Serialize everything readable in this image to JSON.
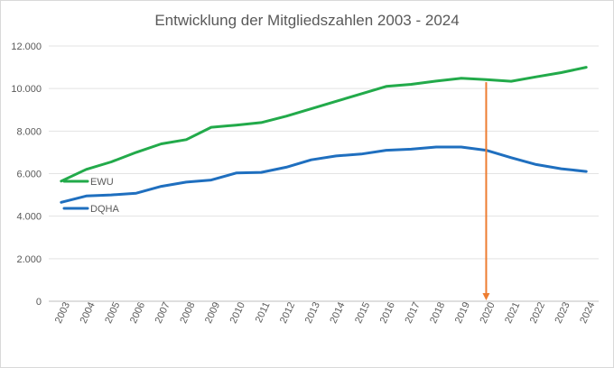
{
  "chart_data": {
    "type": "line",
    "title": "Entwicklung der Mitgliedszahlen 2003 - 2024",
    "xlabel": "",
    "ylabel": "",
    "x": [
      "2003",
      "2004",
      "2005",
      "2006",
      "2007",
      "2008",
      "2009",
      "2010",
      "2011",
      "2012",
      "2013",
      "2014",
      "2015",
      "2016",
      "2017",
      "2018",
      "2019",
      "2020",
      "2021",
      "2022",
      "2023",
      "2024"
    ],
    "series": [
      {
        "name": "EWU",
        "color": "#22aa4a",
        "values": [
          5650,
          6200,
          6550,
          7000,
          7400,
          7600,
          8180,
          8280,
          8400,
          8700,
          9050,
          9400,
          9750,
          10100,
          10200,
          10350,
          10480,
          10420,
          10340,
          10550,
          10750,
          11000
        ]
      },
      {
        "name": "DQHA",
        "color": "#1f6fbf",
        "values": [
          4650,
          4950,
          5000,
          5080,
          5400,
          5600,
          5700,
          6030,
          6060,
          6300,
          6650,
          6830,
          6920,
          7100,
          7150,
          7250,
          7250,
          7100,
          6750,
          6430,
          6230,
          6100
        ]
      }
    ],
    "yticks": [
      "0",
      "2.000",
      "4.000",
      "6.000",
      "8.000",
      "10.000",
      "12.000"
    ],
    "ylim": [
      0,
      12000
    ],
    "grid": true,
    "legend": "left",
    "annotation": {
      "type": "arrow",
      "x": "2020",
      "from": 10300,
      "to": 0,
      "color": "#ed7d31"
    }
  }
}
